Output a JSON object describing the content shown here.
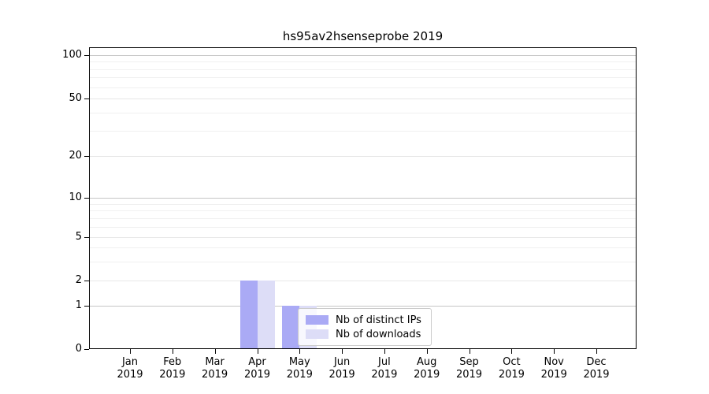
{
  "title": "hs95av2hsenseprobe 2019",
  "colors": {
    "distinct_ips": "#aaaaf5",
    "downloads": "#ddddf7",
    "grid_decade": "#c6c6c6",
    "grid_labeled": "#e7e7e7",
    "grid_minor": "#f0f0f0",
    "axis": "#000000",
    "legend_border": "#cccccc",
    "text": "#000000"
  },
  "legend": {
    "items": [
      {
        "label": "Nb of distinct IPs",
        "color_key": "distinct_ips"
      },
      {
        "label": "Nb of downloads",
        "color_key": "downloads"
      }
    ]
  },
  "chart_data": {
    "type": "bar",
    "title": "hs95av2hsenseprobe 2019",
    "categories": [
      "Jan 2019",
      "Feb 2019",
      "Mar 2019",
      "Apr 2019",
      "May 2019",
      "Jun 2019",
      "Jul 2019",
      "Aug 2019",
      "Sep 2019",
      "Oct 2019",
      "Nov 2019",
      "Dec 2019"
    ],
    "series": [
      {
        "name": "Nb of distinct IPs",
        "color": "#aaaaf5",
        "values": [
          0,
          0,
          0,
          2,
          1,
          0,
          0,
          0,
          0,
          0,
          0,
          0
        ]
      },
      {
        "name": "Nb of downloads",
        "color": "#ddddf7",
        "values": [
          0,
          0,
          0,
          2,
          1,
          0,
          0,
          0,
          0,
          0,
          0,
          0
        ]
      }
    ],
    "xlabel": "",
    "ylabel": "",
    "yscale": "symlog",
    "ylim": [
      0,
      113
    ],
    "yticks": [
      0,
      1,
      2,
      5,
      10,
      20,
      50,
      100
    ],
    "minor_gridline_values": [
      3,
      4,
      6,
      7,
      8,
      9,
      30,
      40,
      60,
      70,
      80,
      90
    ],
    "grid": true,
    "legend_position": "lower center (inside axes)"
  }
}
